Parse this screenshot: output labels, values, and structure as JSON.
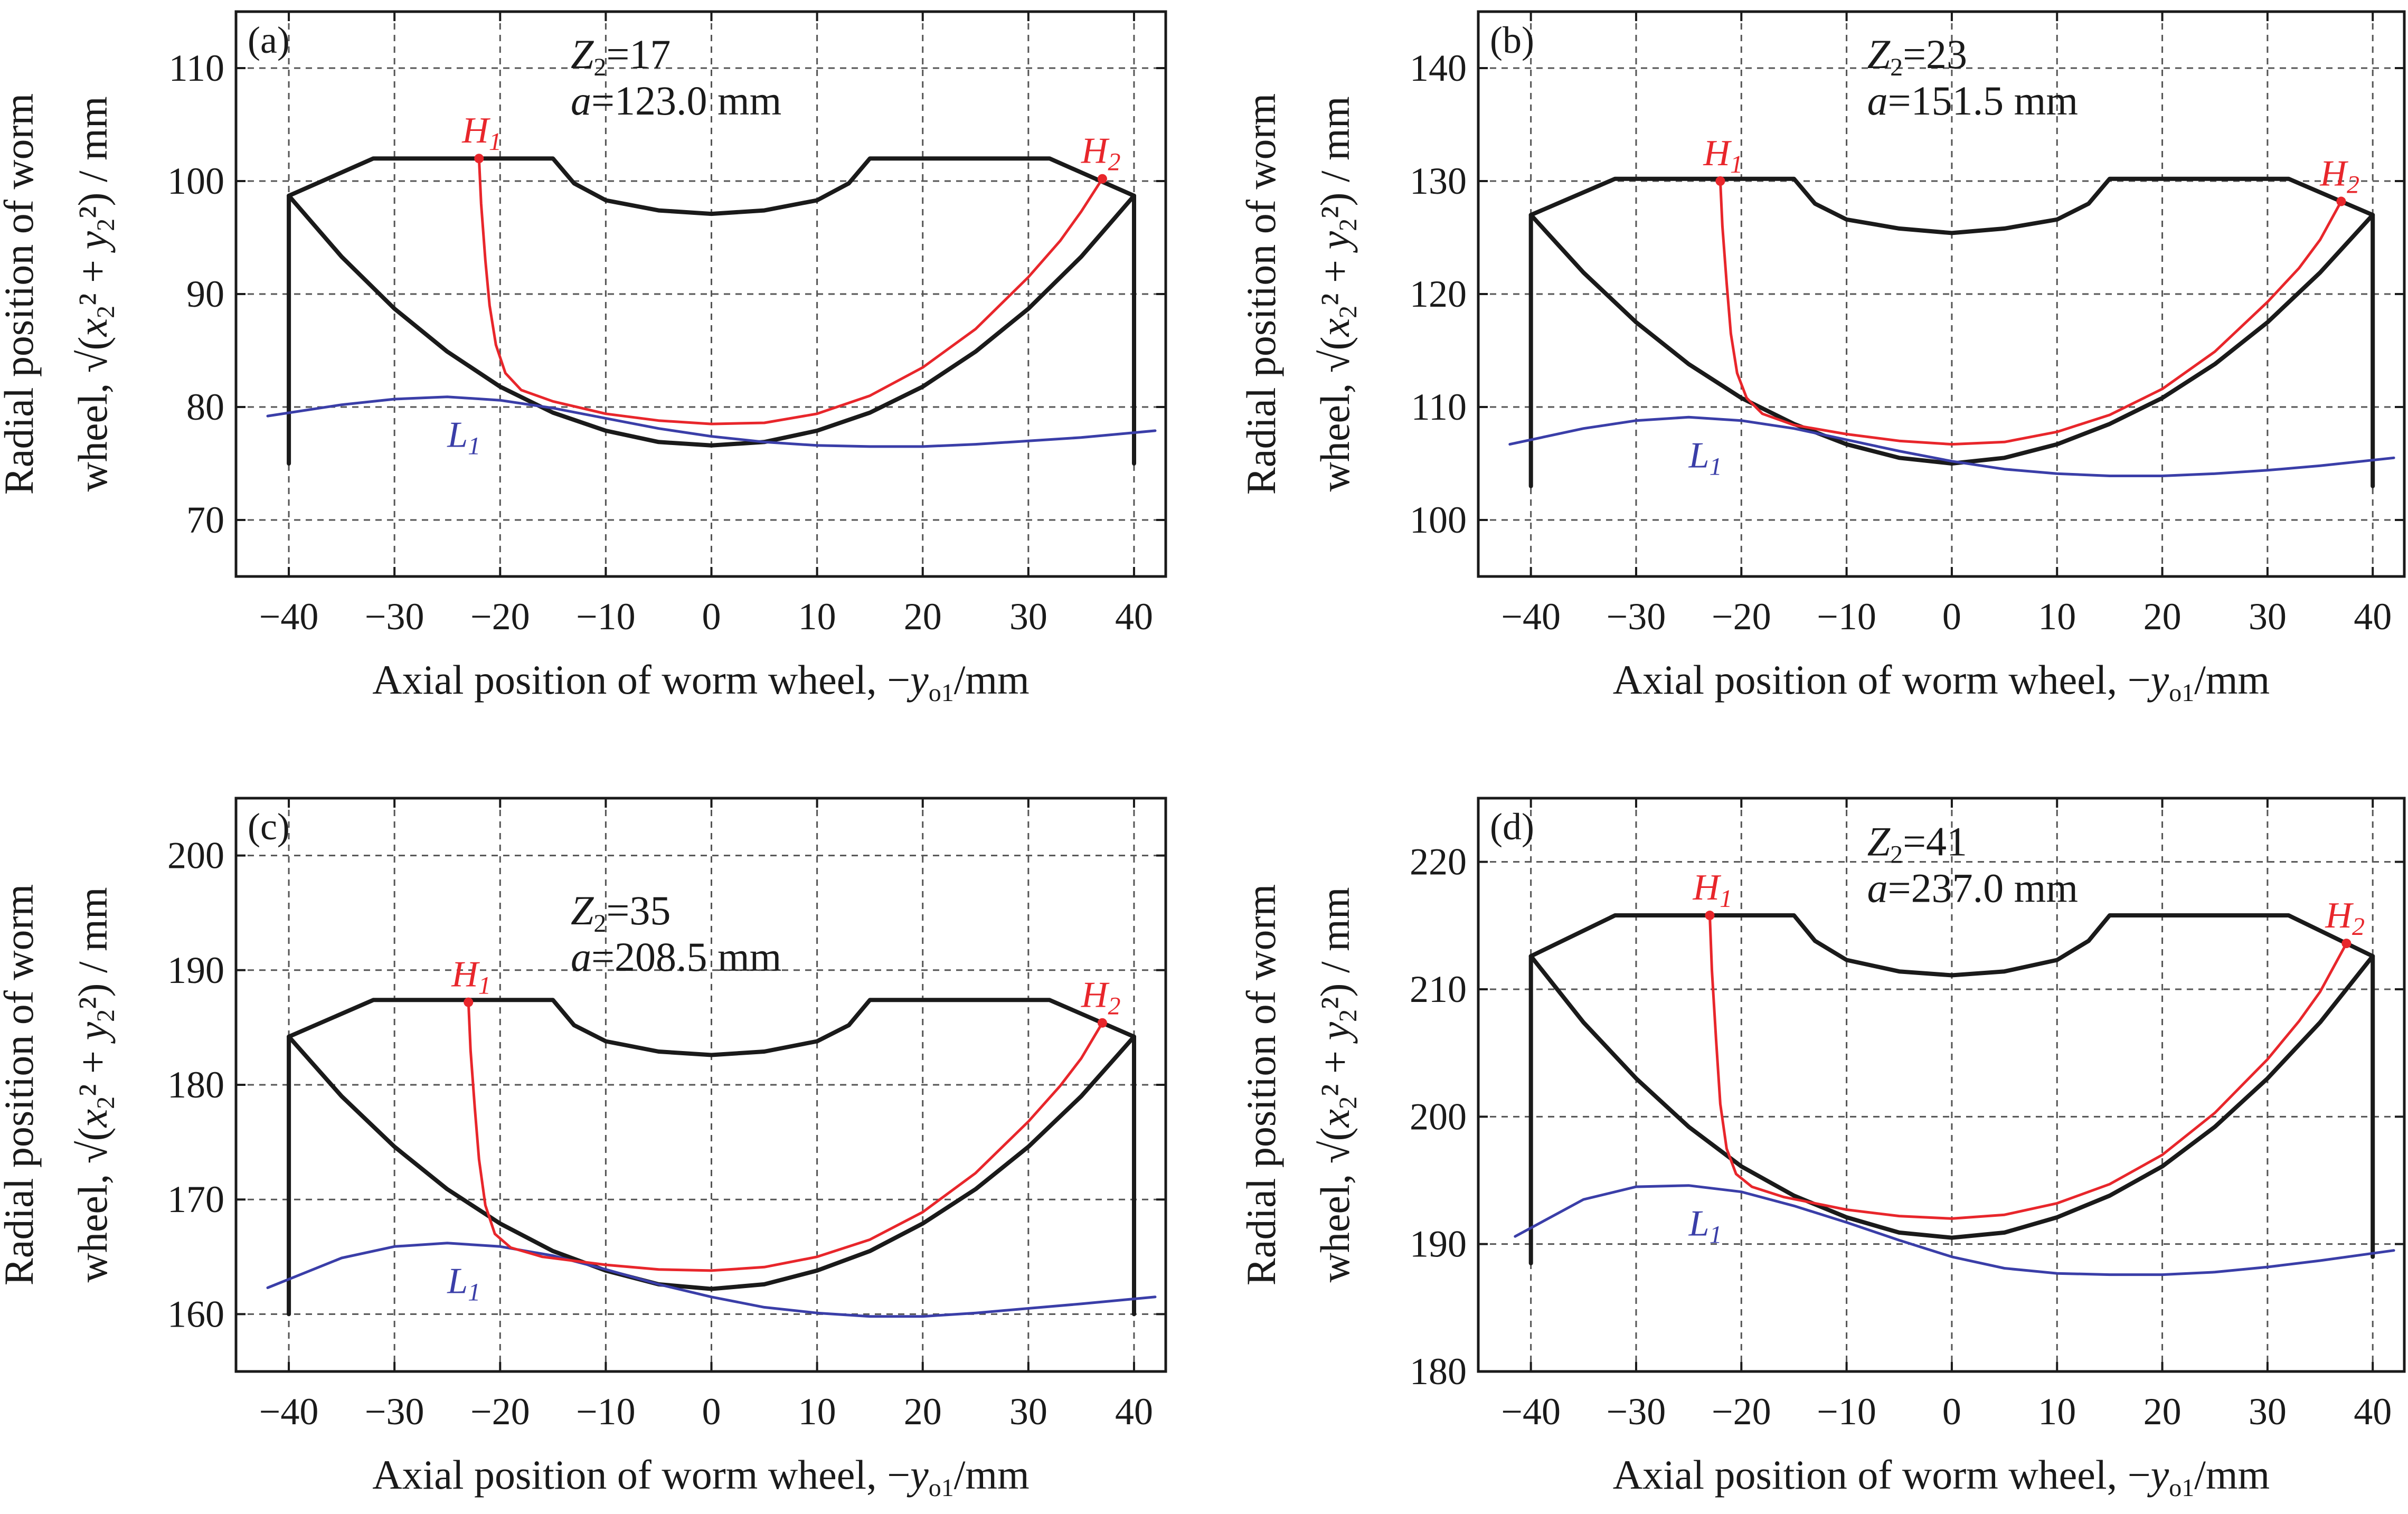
{
  "chart_data": [
    {
      "type": "line",
      "panel_label": "(a)",
      "annotation": {
        "z2": "Z2=17",
        "a": "a=123.0 mm"
      },
      "xlabel": "Axial position of worm wheel, −yo1/mm",
      "ylabel_line1": "Radial position of worm",
      "ylabel_line2": "wheel, √(x2² + y2²) / mm",
      "xlim": [
        -45,
        43
      ],
      "ylim": [
        65,
        115
      ],
      "xticks": [
        -40,
        -30,
        -20,
        -10,
        0,
        10,
        20,
        30,
        40
      ],
      "yticks": [
        70,
        80,
        90,
        100,
        110
      ],
      "grid": true,
      "profile": {
        "color": "#1a1a1a",
        "x": [
          -40,
          -40,
          -40,
          -32,
          -15,
          -13,
          -10,
          -5,
          0,
          5,
          10,
          13,
          15,
          32,
          40,
          40,
          40
        ],
        "y": [
          75,
          98.7,
          98.7,
          102,
          102,
          99.8,
          98.3,
          97.4,
          97.1,
          97.4,
          98.3,
          99.8,
          102,
          102,
          98.7,
          98.7,
          75
        ]
      },
      "arc": {
        "color": "#1a1a1a",
        "x": [
          -40,
          -35,
          -30,
          -25,
          -20,
          -15,
          -10,
          -5,
          0,
          5,
          10,
          15,
          20,
          25,
          30,
          35,
          40
        ],
        "y": [
          98.7,
          93.3,
          88.7,
          84.9,
          81.8,
          79.5,
          77.9,
          76.9,
          76.6,
          76.9,
          77.9,
          79.5,
          81.8,
          84.9,
          88.7,
          93.3,
          98.7
        ]
      },
      "H_curve": {
        "name": "H",
        "color": "#e8262b",
        "x": [
          -22,
          -21.8,
          -21.4,
          -21,
          -20.4,
          -19.5,
          -18,
          -15,
          -10,
          -5,
          0,
          5,
          10,
          15,
          20,
          25,
          30,
          33,
          35,
          37
        ],
        "y": [
          102,
          98,
          93,
          89,
          85.5,
          83,
          81.5,
          80.5,
          79.4,
          78.8,
          78.5,
          78.6,
          79.4,
          81,
          83.5,
          86.9,
          91.5,
          94.7,
          97.3,
          100.2
        ]
      },
      "H1": {
        "label": "H1",
        "x": -22,
        "y": 102
      },
      "H2": {
        "label": "H2",
        "x": 37,
        "y": 100.2
      },
      "L1": {
        "label": "L1",
        "color": "#3a3ea8",
        "x": [
          -42,
          -35,
          -30,
          -25,
          -20,
          -15,
          -10,
          -5,
          0,
          5,
          10,
          15,
          20,
          25,
          30,
          35,
          42
        ],
        "y": [
          79.2,
          80.2,
          80.7,
          80.9,
          80.6,
          79.9,
          79,
          78.1,
          77.4,
          76.9,
          76.6,
          76.5,
          76.5,
          76.7,
          77,
          77.3,
          77.9
        ]
      }
    },
    {
      "type": "line",
      "panel_label": "(b)",
      "annotation": {
        "z2": "Z2=23",
        "a": "a=151.5 mm"
      },
      "xlabel": "Axial position of worm wheel, −yo1/mm",
      "ylabel_line1": "Radial position of worm",
      "ylabel_line2": "wheel, √(x2² + y2²) / mm",
      "xlim": [
        -45,
        43
      ],
      "ylim": [
        95,
        145
      ],
      "xticks": [
        -40,
        -30,
        -20,
        -10,
        0,
        10,
        20,
        30,
        40
      ],
      "yticks": [
        100,
        110,
        120,
        130,
        140
      ],
      "grid": true,
      "profile": {
        "color": "#1a1a1a",
        "x": [
          -40,
          -40,
          -40,
          -32,
          -15,
          -13,
          -10,
          -5,
          0,
          5,
          10,
          13,
          15,
          32,
          40,
          40,
          40
        ],
        "y": [
          103,
          127,
          127,
          130.2,
          130.2,
          128,
          126.6,
          125.8,
          125.4,
          125.8,
          126.6,
          128,
          130.2,
          130.2,
          127,
          127,
          103
        ]
      },
      "arc": {
        "color": "#1a1a1a",
        "x": [
          -40,
          -35,
          -30,
          -25,
          -20,
          -15,
          -10,
          -5,
          0,
          5,
          10,
          15,
          20,
          25,
          30,
          35,
          40
        ],
        "y": [
          127,
          121.9,
          117.5,
          113.8,
          110.8,
          108.5,
          106.7,
          105.5,
          105,
          105.5,
          106.7,
          108.5,
          110.8,
          113.8,
          117.5,
          121.9,
          127
        ]
      },
      "H_curve": {
        "name": "H",
        "color": "#e8262b",
        "x": [
          -22,
          -21.8,
          -21.4,
          -21,
          -20.4,
          -19.5,
          -18,
          -15,
          -10,
          -5,
          0,
          5,
          10,
          15,
          20,
          25,
          30,
          33,
          35,
          37
        ],
        "y": [
          130,
          126,
          121,
          116.5,
          113,
          110.8,
          109.4,
          108.4,
          107.6,
          107,
          106.7,
          106.9,
          107.8,
          109.3,
          111.6,
          114.9,
          119.3,
          122.3,
          124.8,
          128.2
        ]
      },
      "H1": {
        "label": "H1",
        "x": -22,
        "y": 130
      },
      "H2": {
        "label": "H2",
        "x": 37,
        "y": 128.2
      },
      "L1": {
        "label": "L1",
        "color": "#3a3ea8",
        "x": [
          -42,
          -35,
          -30,
          -25,
          -20,
          -15,
          -10,
          -5,
          0,
          5,
          10,
          15,
          20,
          25,
          30,
          35,
          42
        ],
        "y": [
          106.7,
          108.1,
          108.8,
          109.1,
          108.8,
          108.1,
          107.1,
          106.1,
          105.2,
          104.5,
          104.1,
          103.9,
          103.9,
          104.1,
          104.4,
          104.8,
          105.5
        ]
      }
    },
    {
      "type": "line",
      "panel_label": "(c)",
      "annotation": {
        "z2": "Z2=35",
        "a": "a=208.5 mm"
      },
      "xlabel": "Axial position of worm wheel, −yo1/mm",
      "ylabel_line1": "Radial position of worm",
      "ylabel_line2": "wheel, √(x2² + y2²) / mm",
      "xlim": [
        -45,
        43
      ],
      "ylim": [
        155,
        205
      ],
      "xticks": [
        -40,
        -30,
        -20,
        -10,
        0,
        10,
        20,
        30,
        40
      ],
      "yticks": [
        160,
        170,
        180,
        190,
        200
      ],
      "grid": true,
      "profile": {
        "color": "#1a1a1a",
        "x": [
          -40,
          -40,
          -40,
          -32,
          -15,
          -13,
          -10,
          -5,
          0,
          5,
          10,
          13,
          15,
          32,
          40,
          40,
          40
        ],
        "y": [
          160,
          184.2,
          184.2,
          187.4,
          187.4,
          185.2,
          183.8,
          182.9,
          182.6,
          182.9,
          183.8,
          185.2,
          187.4,
          187.4,
          184.2,
          184.2,
          160
        ]
      },
      "arc": {
        "color": "#1a1a1a",
        "x": [
          -40,
          -35,
          -30,
          -25,
          -20,
          -15,
          -10,
          -5,
          0,
          5,
          10,
          15,
          20,
          25,
          30,
          35,
          40
        ],
        "y": [
          184.2,
          179,
          174.6,
          170.9,
          167.9,
          165.5,
          163.8,
          162.6,
          162.2,
          162.6,
          163.8,
          165.5,
          167.9,
          170.9,
          174.6,
          179,
          184.2
        ]
      },
      "H_curve": {
        "name": "H",
        "color": "#e8262b",
        "x": [
          -23,
          -22.8,
          -22.4,
          -22,
          -21.4,
          -20.5,
          -19,
          -16,
          -10,
          -5,
          0,
          5,
          10,
          15,
          20,
          25,
          30,
          33,
          35,
          37
        ],
        "y": [
          187.2,
          183,
          178,
          173.5,
          169.5,
          167,
          165.8,
          165,
          164.3,
          163.9,
          163.8,
          164.1,
          165,
          166.5,
          168.9,
          172.3,
          176.8,
          179.9,
          182.3,
          185.4
        ]
      },
      "H1": {
        "label": "H1",
        "x": -23,
        "y": 187.2
      },
      "H2": {
        "label": "H2",
        "x": 37,
        "y": 185.4
      },
      "L1": {
        "label": "L1",
        "color": "#3a3ea8",
        "x": [
          -42,
          -35,
          -30,
          -25,
          -20,
          -15,
          -10,
          -5,
          0,
          5,
          10,
          15,
          20,
          25,
          30,
          35,
          42
        ],
        "y": [
          162.3,
          164.9,
          165.9,
          166.2,
          165.9,
          165.1,
          163.9,
          162.6,
          161.5,
          160.6,
          160.1,
          159.8,
          159.8,
          160.1,
          160.5,
          160.9,
          161.5
        ]
      }
    },
    {
      "type": "line",
      "panel_label": "(d)",
      "annotation": {
        "z2": "Z2=41",
        "a": "a=237.0 mm"
      },
      "xlabel": "Axial position of worm wheel, −yo1/mm",
      "ylabel_line1": "Radial position of worm",
      "ylabel_line2": "wheel, √(x2² + y2²) / mm",
      "xlim": [
        -45,
        43
      ],
      "ylim": [
        180,
        225
      ],
      "xticks": [
        -40,
        -30,
        -20,
        -10,
        0,
        10,
        20,
        30,
        40
      ],
      "yticks": [
        180,
        190,
        200,
        210,
        220
      ],
      "grid": true,
      "profile": {
        "color": "#1a1a1a",
        "x": [
          -40,
          -40,
          -40,
          -32,
          -15,
          -13,
          -10,
          -5,
          0,
          5,
          10,
          13,
          15,
          32,
          40,
          40,
          40
        ],
        "y": [
          188.5,
          212.6,
          212.6,
          215.8,
          215.8,
          213.8,
          212.3,
          211.4,
          211.1,
          211.4,
          212.3,
          213.8,
          215.8,
          215.8,
          212.6,
          212.6,
          189
        ]
      },
      "arc": {
        "color": "#1a1a1a",
        "x": [
          -40,
          -35,
          -30,
          -25,
          -20,
          -15,
          -10,
          -5,
          0,
          5,
          10,
          15,
          20,
          25,
          30,
          35,
          40
        ],
        "y": [
          212.6,
          207.4,
          203,
          199.2,
          196.1,
          193.8,
          192.1,
          190.9,
          190.5,
          190.9,
          192.1,
          193.8,
          196.1,
          199.2,
          203,
          207.4,
          212.6
        ]
      },
      "H_curve": {
        "name": "H",
        "color": "#e8262b",
        "x": [
          -23,
          -22.8,
          -22.4,
          -22,
          -21.4,
          -20.5,
          -19,
          -16,
          -10,
          -5,
          0,
          5,
          10,
          15,
          20,
          25,
          30,
          33,
          35,
          37.5
        ],
        "y": [
          215.8,
          211.5,
          206,
          201,
          197.5,
          195.5,
          194.5,
          193.7,
          192.7,
          192.2,
          192,
          192.3,
          193.2,
          194.7,
          197,
          200.3,
          204.5,
          207.5,
          209.8,
          213.6
        ]
      },
      "H1": {
        "label": "H1",
        "x": -23,
        "y": 215.8
      },
      "H2": {
        "label": "H2",
        "x": 37.5,
        "y": 213.6
      },
      "L1": {
        "label": "L1",
        "color": "#3a3ea8",
        "x": [
          -41.5,
          -35,
          -30,
          -25,
          -20,
          -15,
          -10,
          -5,
          0,
          5,
          10,
          15,
          20,
          25,
          30,
          35,
          42
        ],
        "y": [
          190.6,
          193.5,
          194.5,
          194.6,
          194.1,
          193,
          191.7,
          190.3,
          189,
          188.1,
          187.7,
          187.6,
          187.6,
          187.8,
          188.2,
          188.7,
          189.5
        ]
      }
    }
  ]
}
